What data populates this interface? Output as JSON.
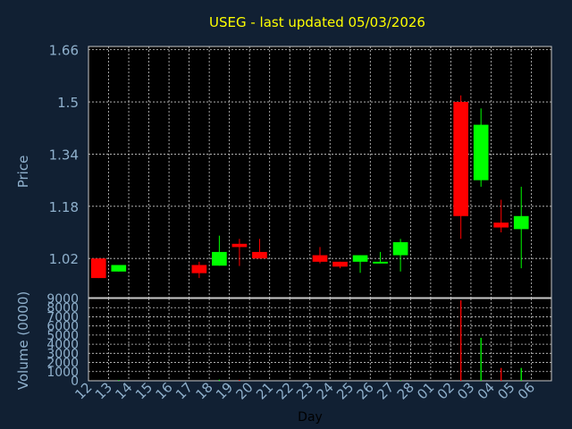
{
  "chart_data": {
    "type": "candlestick",
    "title": "USEG - last updated 05/03/2026",
    "colors": {
      "background": "#112033",
      "panel": "#000000",
      "grid": "#c8c8c8",
      "title": "#ffff00",
      "axis_text": "#8fb0cc",
      "up": "#00ff00",
      "down": "#ff0000"
    },
    "price_panel": {
      "ylabel": "Price",
      "ylim": [
        0.9,
        1.67
      ],
      "yticks": [
        "1.02",
        "1.18",
        "1.34",
        "1.5",
        "1.66"
      ],
      "ytick_values": [
        1.02,
        1.18,
        1.34,
        1.5,
        1.66
      ],
      "grid": true
    },
    "volume_panel": {
      "ylabel": "Volume (0000)",
      "ylim": [
        0,
        9000
      ],
      "yticks": [
        "0",
        "1000",
        "2000",
        "3000",
        "4000",
        "5000",
        "6000",
        "7000",
        "8000",
        "9000"
      ],
      "ytick_values": [
        0,
        1000,
        2000,
        3000,
        4000,
        5000,
        6000,
        7000,
        8000,
        9000
      ],
      "grid": true
    },
    "xlabel": "Day",
    "x_ticks": [
      "12",
      "13",
      "14",
      "15",
      "16",
      "17",
      "18",
      "19",
      "20",
      "21",
      "22",
      "23",
      "24",
      "25",
      "26",
      "27",
      "28",
      "01",
      "02",
      "03",
      "04",
      "05",
      "06"
    ],
    "candles": [
      {
        "day": "12",
        "open": 1.02,
        "high": 1.02,
        "low": 0.96,
        "close": 0.96
      },
      {
        "day": "13",
        "open": 0.98,
        "high": 1.0,
        "low": 0.98,
        "close": 1.0
      },
      {
        "day": "17",
        "open": 1.0,
        "high": 1.01,
        "low": 0.96,
        "close": 0.975
      },
      {
        "day": "18",
        "open": 0.998,
        "high": 1.09,
        "low": 0.998,
        "close": 1.04
      },
      {
        "day": "19",
        "open": 1.065,
        "high": 1.08,
        "low": 0.997,
        "close": 1.055
      },
      {
        "day": "20",
        "open": 1.04,
        "high": 1.08,
        "low": 1.02,
        "close": 1.02
      },
      {
        "day": "23",
        "open": 1.03,
        "high": 1.055,
        "low": 1.005,
        "close": 1.01
      },
      {
        "day": "24",
        "open": 1.01,
        "high": 1.01,
        "low": 0.99,
        "close": 0.995
      },
      {
        "day": "25",
        "open": 1.01,
        "high": 1.03,
        "low": 0.976,
        "close": 1.03
      },
      {
        "day": "26",
        "open": 1.007,
        "high": 1.04,
        "low": 1.007,
        "close": 1.01
      },
      {
        "day": "27",
        "open": 1.03,
        "high": 1.08,
        "low": 0.98,
        "close": 1.07
      },
      {
        "day": "02",
        "open": 1.5,
        "high": 1.52,
        "low": 1.08,
        "close": 1.15
      },
      {
        "day": "03",
        "open": 1.26,
        "high": 1.48,
        "low": 1.24,
        "close": 1.43
      },
      {
        "day": "04",
        "open": 1.13,
        "high": 1.2,
        "low": 1.1,
        "close": 1.115
      },
      {
        "day": "05",
        "open": 1.11,
        "high": 1.24,
        "low": 0.99,
        "close": 1.15
      }
    ],
    "volumes": [
      {
        "day": "13",
        "value": 80,
        "dir": "up"
      },
      {
        "day": "18",
        "value": 120,
        "dir": "up"
      },
      {
        "day": "19",
        "value": 100,
        "dir": "down"
      },
      {
        "day": "27",
        "value": 60,
        "dir": "up"
      },
      {
        "day": "02",
        "value": 8800,
        "dir": "down"
      },
      {
        "day": "03",
        "value": 4700,
        "dir": "up"
      },
      {
        "day": "04",
        "value": 1400,
        "dir": "down"
      },
      {
        "day": "05",
        "value": 1400,
        "dir": "up"
      }
    ]
  }
}
